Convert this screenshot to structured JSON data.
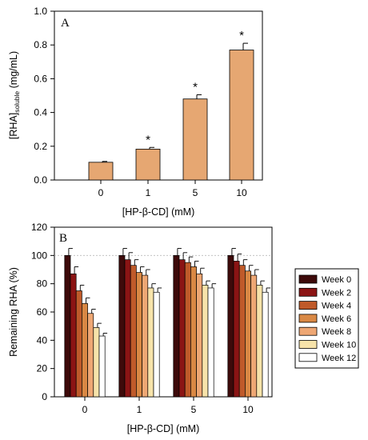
{
  "chart_data": [
    {
      "type": "bar",
      "panel_label": "A",
      "categories": [
        "0",
        "1",
        "5",
        "10"
      ],
      "values": [
        0.105,
        0.183,
        0.48,
        0.77
      ],
      "errors": [
        0.005,
        0.01,
        0.025,
        0.04
      ],
      "annotations": [
        "",
        "*",
        "*",
        "*"
      ],
      "xlabel": "[HP-β-CD] (mM)",
      "ylabel": "[RHA]soluble (mg/mL)",
      "ylabel_main": "[RHA]",
      "ylabel_sub": "soluble",
      "ylabel_unit": " (mg/mL)",
      "ylim": [
        0,
        1.0
      ],
      "yticks": [
        "0.0",
        "0.2",
        "0.4",
        "0.6",
        "0.8",
        "1.0"
      ],
      "bar_color": "#e6a772",
      "grid": false,
      "legend": "none"
    },
    {
      "type": "bar",
      "panel_label": "B",
      "categories": [
        "0",
        "1",
        "5",
        "10"
      ],
      "series": [
        {
          "name": "Week 0",
          "color": "#3d0a0a",
          "values": [
            100,
            100,
            100,
            100
          ],
          "errors": [
            5,
            5,
            5,
            5
          ]
        },
        {
          "name": "Week 2",
          "color": "#8b1414",
          "values": [
            87,
            97,
            97,
            96
          ],
          "errors": [
            5,
            5,
            5,
            5
          ]
        },
        {
          "name": "Week 4",
          "color": "#bf5a2a",
          "values": [
            75,
            93,
            95,
            93
          ],
          "errors": [
            4,
            4,
            4,
            4
          ]
        },
        {
          "name": "Week 6",
          "color": "#d98844",
          "values": [
            66,
            88,
            92,
            89
          ],
          "errors": [
            4,
            4,
            4,
            4
          ]
        },
        {
          "name": "Week 8",
          "color": "#eea774",
          "values": [
            59,
            86,
            87,
            86
          ],
          "errors": [
            3,
            4,
            4,
            4
          ]
        },
        {
          "name": "Week 10",
          "color": "#f7e3aa",
          "values": [
            49,
            77,
            79,
            79
          ],
          "errors": [
            3,
            3,
            3,
            3
          ]
        },
        {
          "name": "Week 12",
          "color": "#ffffff",
          "values": [
            43,
            74,
            77,
            74
          ],
          "errors": [
            2,
            3,
            3,
            3
          ]
        }
      ],
      "xlabel": "[HP-β-CD] (mM)",
      "ylabel": "Remaining RHA (%)",
      "ylim": [
        0,
        120
      ],
      "yticks": [
        "0",
        "20",
        "40",
        "60",
        "80",
        "100",
        "120"
      ],
      "reference_line": 100,
      "grid": false,
      "legend": "right"
    }
  ]
}
